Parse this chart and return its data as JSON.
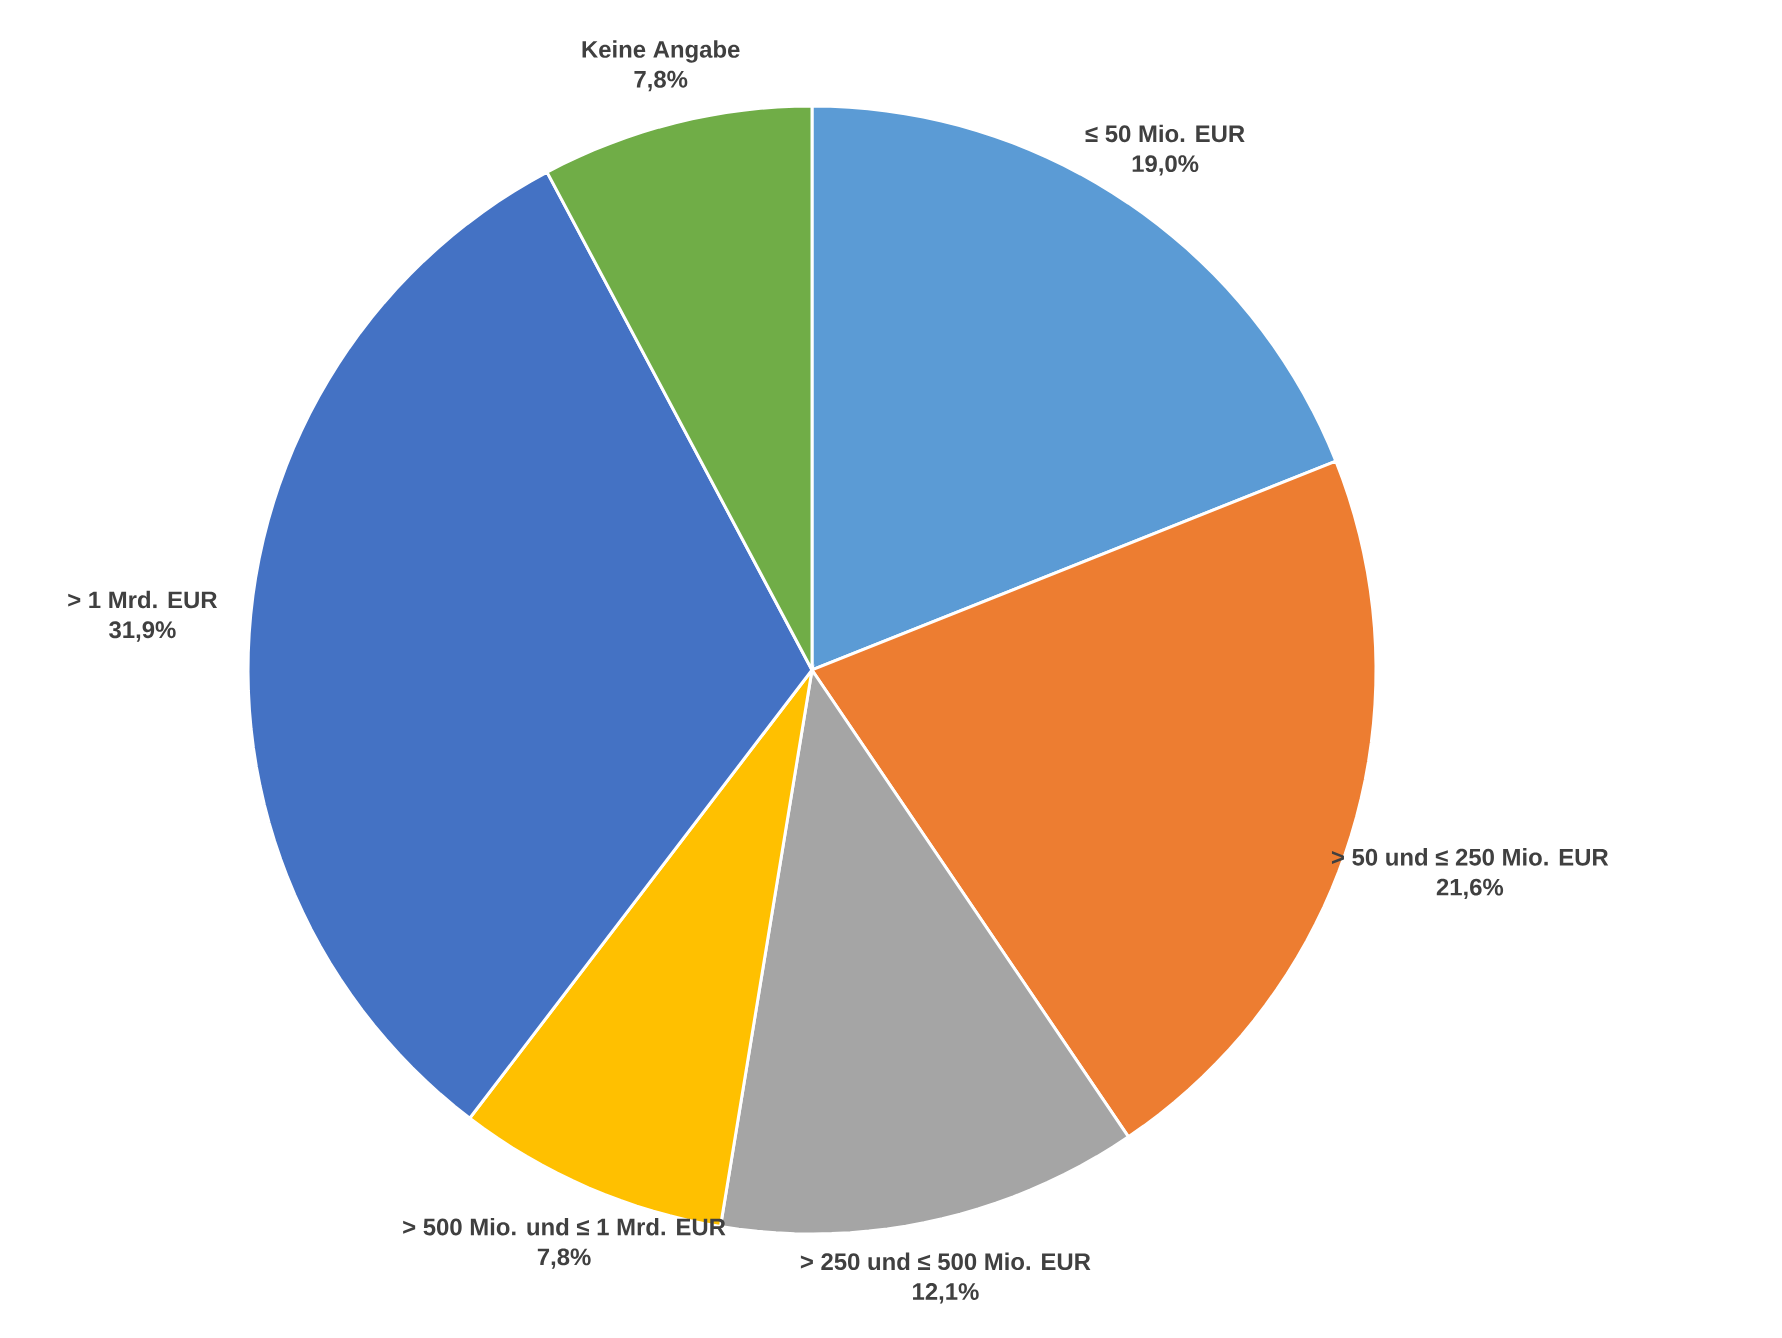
{
  "chart_data": {
    "type": "pie",
    "categories": [
      "≤ 50 Mio. EUR",
      "> 50 und ≤ 250 Mio. EUR",
      "> 250 und ≤ 500 Mio. EUR",
      "> 500 Mio. und ≤ 1 Mrd. EUR",
      "> 1 Mrd. EUR",
      "Keine Angabe"
    ],
    "values": [
      19.0,
      21.6,
      12.1,
      7.8,
      31.9,
      7.8
    ],
    "value_labels": [
      "19,0%",
      "21,6%",
      "12,1%",
      "7,8%",
      "31,9%",
      "7,8%"
    ],
    "colors": [
      "#5b9bd5",
      "#ed7d31",
      "#a5a5a5",
      "#ffc000",
      "#4472c4",
      "#70ad47"
    ]
  }
}
